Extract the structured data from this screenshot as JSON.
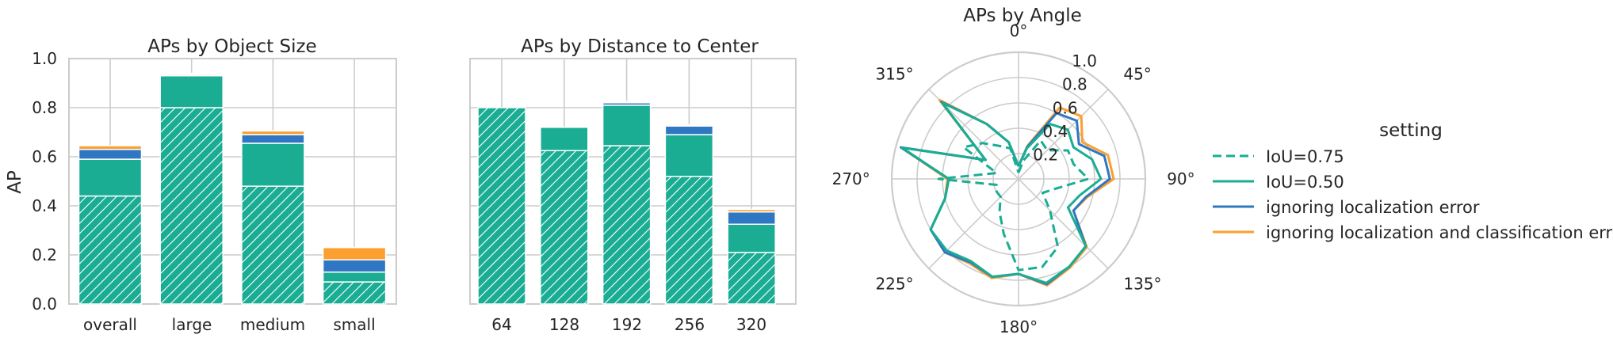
{
  "colors": {
    "iou50": "#1aad94",
    "iou75": "#1aad94",
    "loc": "#2f77c2",
    "cls": "#fb9f2f",
    "grid": "#cccccc"
  },
  "chart_data": [
    {
      "type": "bar",
      "title": "APs by Object Size",
      "ylabel": "AP",
      "ylim": [
        0,
        1
      ],
      "yticks": [
        "0.0",
        "0.2",
        "0.4",
        "0.6",
        "0.8",
        "1.0"
      ],
      "categories": [
        "overall",
        "large",
        "medium",
        "small"
      ],
      "stacked_cumulative": true,
      "series": [
        {
          "name": "IoU=0.75",
          "values": [
            0.44,
            0.8,
            0.48,
            0.09
          ]
        },
        {
          "name": "IoU=0.50",
          "values": [
            0.59,
            0.93,
            0.655,
            0.13
          ]
        },
        {
          "name": "ignoring localization error",
          "values": [
            0.63,
            0.935,
            0.69,
            0.18
          ]
        },
        {
          "name": "ignoring localization and classification error",
          "values": [
            0.645,
            0.94,
            0.705,
            0.23
          ]
        }
      ]
    },
    {
      "type": "bar",
      "title": "APs by Distance to Center",
      "ylim": [
        0,
        1
      ],
      "categories": [
        "64",
        "128",
        "192",
        "256",
        "320"
      ],
      "stacked_cumulative": true,
      "series": [
        {
          "name": "IoU=0.75",
          "values": [
            0.8,
            0.625,
            0.645,
            0.52,
            0.21
          ]
        },
        {
          "name": "IoU=0.50",
          "values": [
            0.8,
            0.72,
            0.81,
            0.69,
            0.325
          ]
        },
        {
          "name": "ignoring localization error",
          "values": [
            0.8,
            0.72,
            0.82,
            0.725,
            0.375
          ]
        },
        {
          "name": "ignoring localization and classification error",
          "values": [
            0.8,
            0.72,
            0.825,
            0.73,
            0.385
          ]
        }
      ]
    },
    {
      "type": "line",
      "projection": "polar",
      "title": "APs by Angle",
      "theta_labels": [
        "0°",
        "45°",
        "90°",
        "135°",
        "180°",
        "225°",
        "270°",
        "315°"
      ],
      "r_ticks": [
        "0.2",
        "0.4",
        "0.6",
        "0.8",
        "1.0"
      ],
      "rlim": [
        0,
        1
      ],
      "theta_deg": [
        0,
        15,
        30,
        45,
        60,
        75,
        90,
        105,
        120,
        135,
        150,
        165,
        180,
        195,
        210,
        225,
        240,
        255,
        270,
        285,
        300,
        315,
        330,
        345
      ],
      "legend_title": "setting",
      "series": [
        {
          "name": "IoU=0.75",
          "style": "dashed",
          "values": [
            0.05,
            0.15,
            0.35,
            0.32,
            0.45,
            0.45,
            0.55,
            0.3,
            0.22,
            0.35,
            0.62,
            0.72,
            0.72,
            0.45,
            0.3,
            0.2,
            0.2,
            0.18,
            0.63,
            0.18,
            0.5,
            0.4,
            0.3,
            0.25
          ]
        },
        {
          "name": "IoU=0.50",
          "style": "solid",
          "values": [
            0.1,
            0.25,
            0.5,
            0.55,
            0.5,
            0.6,
            0.65,
            0.5,
            0.45,
            0.75,
            0.8,
            0.85,
            0.75,
            0.8,
            0.75,
            0.8,
            0.8,
            0.6,
            0.55,
            0.95,
            0.3,
            0.85,
            0.5,
            0.3
          ]
        },
        {
          "name": "ignoring localization error",
          "style": "solid",
          "values": [
            0.1,
            0.26,
            0.6,
            0.65,
            0.55,
            0.7,
            0.72,
            0.55,
            0.5,
            0.75,
            0.8,
            0.86,
            0.75,
            0.8,
            0.76,
            0.82,
            0.8,
            0.6,
            0.55,
            0.96,
            0.3,
            0.86,
            0.5,
            0.3
          ]
        },
        {
          "name": "ignoring localization and classification error",
          "style": "solid",
          "values": [
            0.1,
            0.27,
            0.65,
            0.7,
            0.58,
            0.73,
            0.75,
            0.56,
            0.5,
            0.76,
            0.81,
            0.87,
            0.75,
            0.81,
            0.77,
            0.82,
            0.8,
            0.6,
            0.56,
            0.96,
            0.3,
            0.88,
            0.5,
            0.3
          ]
        }
      ]
    }
  ]
}
